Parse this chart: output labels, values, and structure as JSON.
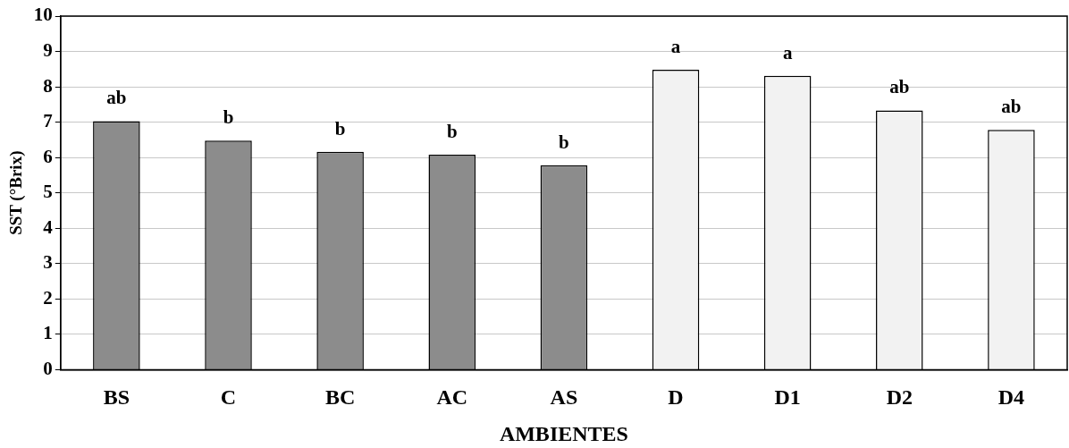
{
  "chart_data": {
    "type": "bar",
    "xlabel": "AMBIENTES",
    "ylabel": "SST (°Brix)",
    "categories": [
      "BS",
      "C",
      "BC",
      "AC",
      "AS",
      "D",
      "D1",
      "D2",
      "D4"
    ],
    "values": [
      7.03,
      6.48,
      6.16,
      6.08,
      5.78,
      8.48,
      8.31,
      7.33,
      6.78
    ],
    "colors": [
      "#8c8c8c",
      "#8c8c8c",
      "#8c8c8c",
      "#8c8c8c",
      "#8c8c8c",
      "#f2f2f2",
      "#f2f2f2",
      "#f2f2f2",
      "#f2f2f2"
    ],
    "ylim": [
      0,
      10
    ],
    "yticks": [
      0,
      1,
      2,
      3,
      4,
      5,
      6,
      7,
      8,
      9,
      10
    ],
    "grid": "y",
    "legend": false,
    "annotations": [
      {
        "text": "ab",
        "x": "BS",
        "y": 7.03
      },
      {
        "text": "b",
        "x": "C",
        "y": 6.48
      },
      {
        "text": "b",
        "x": "BC",
        "y": 6.16
      },
      {
        "text": "b",
        "x": "AC",
        "y": 6.08
      },
      {
        "text": "b",
        "x": "AS",
        "y": 5.78
      },
      {
        "text": "a",
        "x": "D",
        "y": 8.48
      },
      {
        "text": "a",
        "x": "D1",
        "y": 8.31
      },
      {
        "text": "ab",
        "x": "D2",
        "y": 7.33
      },
      {
        "text": "ab",
        "x": "D4",
        "y": 6.78
      }
    ]
  }
}
